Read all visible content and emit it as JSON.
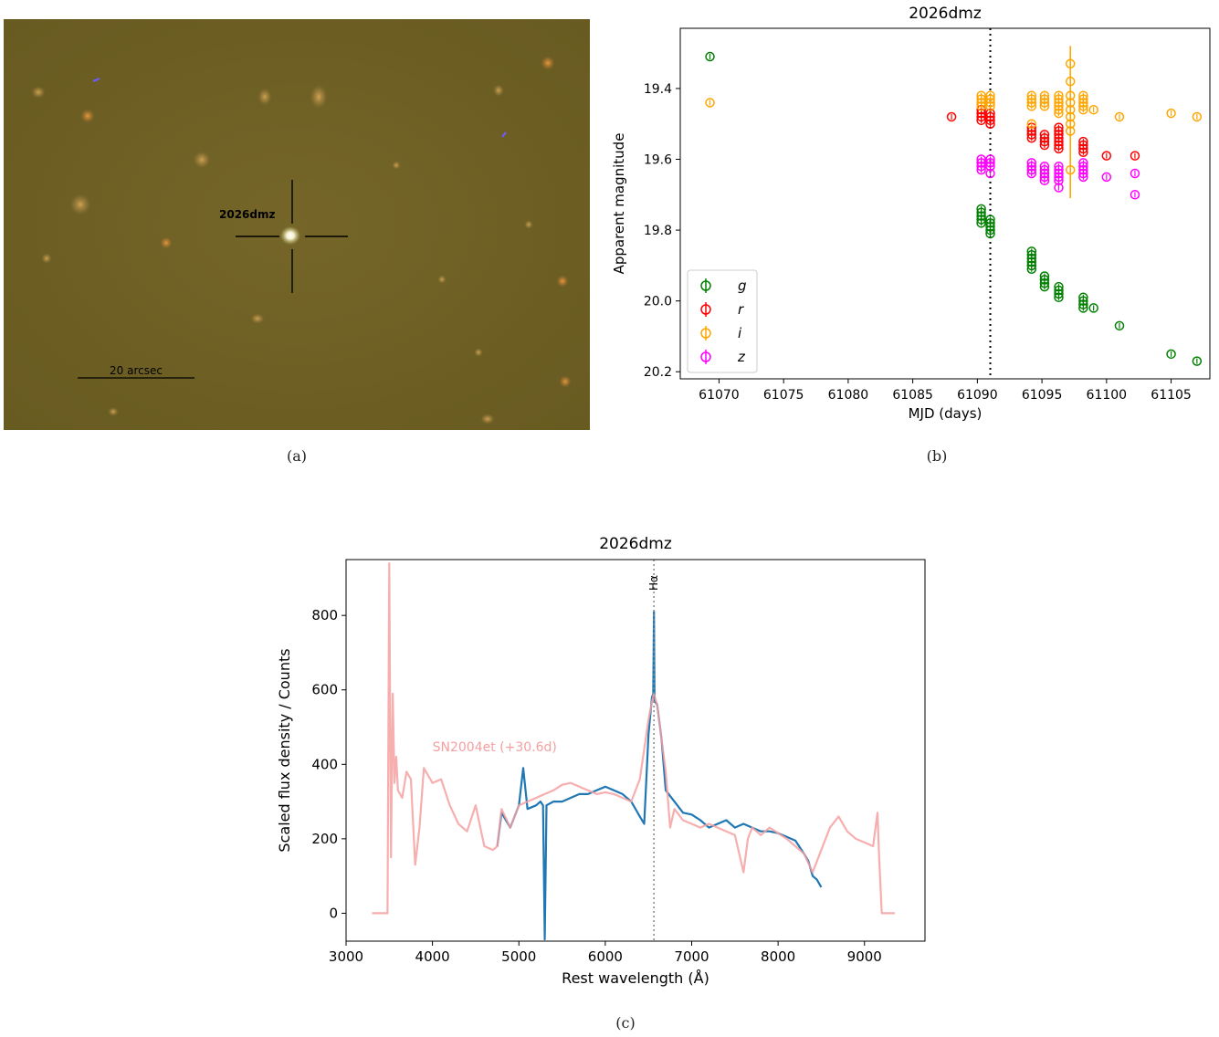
{
  "captions": {
    "a": "(a)",
    "b": "(b)",
    "c": "(c)"
  },
  "image_panel": {
    "object_label": "2026dmz",
    "scale_label": "20 arcsec",
    "colors": {
      "background": "#6e6023",
      "crosshair": "#000000"
    }
  },
  "chart_data": [
    {
      "type": "scatter",
      "title": "2026dmz",
      "xlabel": "MJD (days)",
      "ylabel": "Apparent magnitude",
      "xlim": [
        61067,
        61108
      ],
      "ylim": [
        20.22,
        19.23
      ],
      "y_inverted": true,
      "x_ticks": [
        61070,
        61075,
        61080,
        61085,
        61090,
        61095,
        61100,
        61105
      ],
      "x_tick_labels": [
        "61070",
        "61075",
        "61080",
        "61085",
        "61090",
        "61095",
        "61100",
        "61105"
      ],
      "y_ticks": [
        19.4,
        19.6,
        19.8,
        20.0,
        20.2
      ],
      "y_tick_labels": [
        "19.4",
        "19.6",
        "19.8",
        "20.0",
        "20.2"
      ],
      "vline_x": 61091,
      "legend_position": "lower left",
      "grid": false,
      "series": [
        {
          "name": "g",
          "color": "#008000",
          "points": [
            [
              61069.3,
              19.31
            ],
            [
              61090.3,
              19.74
            ],
            [
              61090.3,
              19.75
            ],
            [
              61090.3,
              19.76
            ],
            [
              61090.3,
              19.77
            ],
            [
              61090.3,
              19.78
            ],
            [
              61091.0,
              19.77
            ],
            [
              61091.0,
              19.78
            ],
            [
              61091.0,
              19.79
            ],
            [
              61091.0,
              19.8
            ],
            [
              61091.0,
              19.81
            ],
            [
              61094.2,
              19.86
            ],
            [
              61094.2,
              19.87
            ],
            [
              61094.2,
              19.88
            ],
            [
              61094.2,
              19.89
            ],
            [
              61094.2,
              19.9
            ],
            [
              61094.2,
              19.91
            ],
            [
              61095.2,
              19.93
            ],
            [
              61095.2,
              19.94
            ],
            [
              61095.2,
              19.95
            ],
            [
              61095.2,
              19.96
            ],
            [
              61096.3,
              19.96
            ],
            [
              61096.3,
              19.97
            ],
            [
              61096.3,
              19.98
            ],
            [
              61096.3,
              19.99
            ],
            [
              61098.2,
              19.99
            ],
            [
              61098.2,
              20.0
            ],
            [
              61098.2,
              20.01
            ],
            [
              61098.2,
              20.02
            ],
            [
              61099.0,
              20.02
            ],
            [
              61101.0,
              20.07
            ],
            [
              61105.0,
              20.15
            ],
            [
              61107.0,
              20.17
            ]
          ]
        },
        {
          "name": "r",
          "color": "#ff0000",
          "points": [
            [
              61088.0,
              19.48
            ],
            [
              61090.3,
              19.46
            ],
            [
              61090.3,
              19.47
            ],
            [
              61090.3,
              19.48
            ],
            [
              61090.3,
              19.49
            ],
            [
              61091.0,
              19.47
            ],
            [
              61091.0,
              19.48
            ],
            [
              61091.0,
              19.49
            ],
            [
              61091.0,
              19.5
            ],
            [
              61094.2,
              19.51
            ],
            [
              61094.2,
              19.52
            ],
            [
              61094.2,
              19.53
            ],
            [
              61094.2,
              19.54
            ],
            [
              61095.2,
              19.53
            ],
            [
              61095.2,
              19.54
            ],
            [
              61095.2,
              19.55
            ],
            [
              61095.2,
              19.56
            ],
            [
              61096.3,
              19.51
            ],
            [
              61096.3,
              19.52
            ],
            [
              61096.3,
              19.53
            ],
            [
              61096.3,
              19.54
            ],
            [
              61096.3,
              19.55
            ],
            [
              61096.3,
              19.56
            ],
            [
              61096.3,
              19.57
            ],
            [
              61098.2,
              19.55
            ],
            [
              61098.2,
              19.56
            ],
            [
              61098.2,
              19.57
            ],
            [
              61098.2,
              19.58
            ],
            [
              61100.0,
              19.59
            ],
            [
              61102.2,
              19.59
            ]
          ]
        },
        {
          "name": "i",
          "color": "#ffa500",
          "points": [
            [
              61069.3,
              19.44
            ],
            [
              61090.3,
              19.42
            ],
            [
              61090.3,
              19.43
            ],
            [
              61090.3,
              19.44
            ],
            [
              61090.3,
              19.45
            ],
            [
              61091.0,
              19.42
            ],
            [
              61091.0,
              19.43
            ],
            [
              61091.0,
              19.44
            ],
            [
              61091.0,
              19.45
            ],
            [
              61094.2,
              19.42
            ],
            [
              61094.2,
              19.43
            ],
            [
              61094.2,
              19.44
            ],
            [
              61094.2,
              19.45
            ],
            [
              61094.2,
              19.5
            ],
            [
              61095.2,
              19.42
            ],
            [
              61095.2,
              19.43
            ],
            [
              61095.2,
              19.44
            ],
            [
              61095.2,
              19.45
            ],
            [
              61096.3,
              19.42
            ],
            [
              61096.3,
              19.43
            ],
            [
              61096.3,
              19.44
            ],
            [
              61096.3,
              19.45
            ],
            [
              61096.3,
              19.46
            ],
            [
              61096.3,
              19.47
            ],
            [
              61097.2,
              19.33
            ],
            [
              61097.2,
              19.38
            ],
            [
              61097.2,
              19.42
            ],
            [
              61097.2,
              19.44
            ],
            [
              61097.2,
              19.46
            ],
            [
              61097.2,
              19.48
            ],
            [
              61097.2,
              19.5
            ],
            [
              61097.2,
              19.52
            ],
            [
              61097.2,
              19.63
            ],
            [
              61098.2,
              19.42
            ],
            [
              61098.2,
              19.43
            ],
            [
              61098.2,
              19.44
            ],
            [
              61098.2,
              19.45
            ],
            [
              61098.2,
              19.46
            ],
            [
              61099.0,
              19.46
            ],
            [
              61101.0,
              19.48
            ],
            [
              61105.0,
              19.47
            ],
            [
              61107.0,
              19.48
            ]
          ],
          "errorbar": {
            "x": 61097.2,
            "low": 19.28,
            "high": 19.71
          }
        },
        {
          "name": "z",
          "color": "#ff00ff",
          "points": [
            [
              61090.3,
              19.6
            ],
            [
              61090.3,
              19.61
            ],
            [
              61090.3,
              19.62
            ],
            [
              61090.3,
              19.63
            ],
            [
              61091.0,
              19.6
            ],
            [
              61091.0,
              19.61
            ],
            [
              61091.0,
              19.62
            ],
            [
              61091.0,
              19.64
            ],
            [
              61094.2,
              19.61
            ],
            [
              61094.2,
              19.62
            ],
            [
              61094.2,
              19.63
            ],
            [
              61094.2,
              19.64
            ],
            [
              61095.2,
              19.62
            ],
            [
              61095.2,
              19.63
            ],
            [
              61095.2,
              19.64
            ],
            [
              61095.2,
              19.65
            ],
            [
              61095.2,
              19.66
            ],
            [
              61096.3,
              19.62
            ],
            [
              61096.3,
              19.63
            ],
            [
              61096.3,
              19.64
            ],
            [
              61096.3,
              19.65
            ],
            [
              61096.3,
              19.66
            ],
            [
              61096.3,
              19.68
            ],
            [
              61098.2,
              19.61
            ],
            [
              61098.2,
              19.62
            ],
            [
              61098.2,
              19.63
            ],
            [
              61098.2,
              19.64
            ],
            [
              61098.2,
              19.65
            ],
            [
              61100.0,
              19.65
            ],
            [
              61102.2,
              19.64
            ],
            [
              61102.2,
              19.7
            ]
          ]
        }
      ]
    },
    {
      "type": "line",
      "title": "2026dmz",
      "xlabel": "Rest wavelength (Å)",
      "ylabel": "Scaled flux density / Counts",
      "xlim": [
        3000,
        9700
      ],
      "ylim": [
        -75,
        950
      ],
      "x_ticks": [
        3000,
        4000,
        5000,
        6000,
        7000,
        8000,
        9000
      ],
      "x_tick_labels": [
        "3000",
        "4000",
        "5000",
        "6000",
        "7000",
        "8000",
        "9000"
      ],
      "y_ticks": [
        0,
        200,
        400,
        600,
        800
      ],
      "y_tick_labels": [
        "0",
        "200",
        "400",
        "600",
        "800"
      ],
      "line_marker": {
        "label": "Hα",
        "x": 6563
      },
      "annotation": "SN2004et (+30.6d)",
      "grid": false,
      "series": [
        {
          "name": "SN2004et (+30.6d)",
          "color": "#f4a0a0",
          "x": [
            3300,
            3480,
            3500,
            3520,
            3540,
            3560,
            3580,
            3600,
            3650,
            3700,
            3750,
            3800,
            3850,
            3900,
            3950,
            4000,
            4100,
            4200,
            4300,
            4400,
            4500,
            4600,
            4700,
            4750,
            4800,
            4900,
            5000,
            5100,
            5200,
            5300,
            5400,
            5500,
            5600,
            5700,
            5800,
            5900,
            6000,
            6100,
            6200,
            6300,
            6400,
            6500,
            6560,
            6600,
            6700,
            6750,
            6800,
            6900,
            7000,
            7100,
            7200,
            7300,
            7400,
            7500,
            7600,
            7650,
            7700,
            7800,
            7900,
            8000,
            8100,
            8200,
            8300,
            8400,
            8500,
            8600,
            8700,
            8800,
            8900,
            9000,
            9100,
            9150,
            9170,
            9200,
            9350
          ],
          "y": [
            0,
            0,
            940,
            150,
            590,
            350,
            420,
            330,
            310,
            380,
            360,
            130,
            230,
            390,
            370,
            350,
            360,
            290,
            240,
            220,
            290,
            180,
            170,
            180,
            280,
            230,
            290,
            300,
            310,
            320,
            330,
            345,
            350,
            340,
            330,
            320,
            325,
            320,
            310,
            300,
            360,
            520,
            590,
            560,
            380,
            230,
            280,
            250,
            240,
            230,
            240,
            230,
            220,
            210,
            110,
            200,
            230,
            210,
            230,
            215,
            200,
            180,
            160,
            110,
            170,
            230,
            260,
            220,
            200,
            190,
            180,
            270,
            150,
            0,
            0
          ]
        },
        {
          "name": "2026dmz",
          "color": "#1f77b4",
          "x": [
            4750,
            4800,
            4900,
            5000,
            5050,
            5100,
            5200,
            5250,
            5280,
            5300,
            5320,
            5400,
            5500,
            5600,
            5700,
            5800,
            5900,
            6000,
            6100,
            6200,
            6300,
            6400,
            6450,
            6500,
            6540,
            6555,
            6563,
            6570,
            6600,
            6650,
            6700,
            6800,
            6900,
            7000,
            7100,
            7200,
            7300,
            7400,
            7500,
            7600,
            7700,
            7800,
            7900,
            8000,
            8100,
            8200,
            8300,
            8350,
            8400,
            8450,
            8500
          ],
          "y": [
            180,
            270,
            230,
            290,
            390,
            280,
            290,
            300,
            290,
            -70,
            290,
            300,
            300,
            310,
            320,
            320,
            330,
            340,
            330,
            320,
            300,
            260,
            240,
            480,
            580,
            590,
            810,
            570,
            560,
            470,
            330,
            300,
            270,
            265,
            250,
            230,
            240,
            250,
            230,
            240,
            230,
            220,
            220,
            215,
            205,
            195,
            160,
            140,
            100,
            90,
            70
          ]
        }
      ]
    }
  ]
}
